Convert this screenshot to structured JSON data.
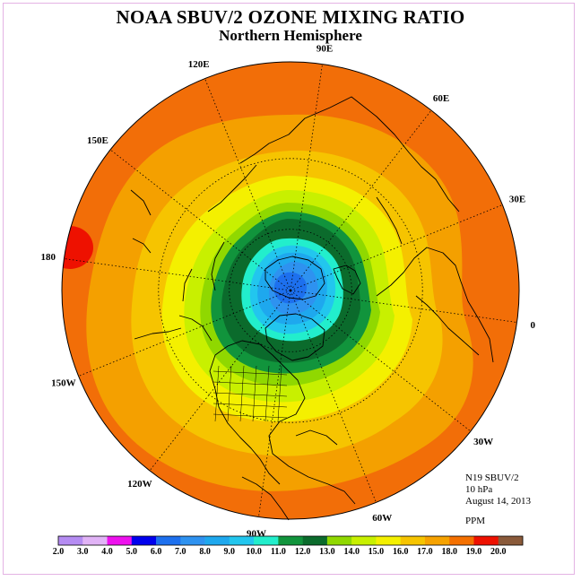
{
  "title": "NOAA SBUV/2 OZONE MIXING RATIO",
  "subtitle": "Northern Hemisphere",
  "longitude_labels": [
    {
      "text": "90E",
      "lon": 90
    },
    {
      "text": "60E",
      "lon": 60
    },
    {
      "text": "30E",
      "lon": 30
    },
    {
      "text": "0",
      "lon": 0
    },
    {
      "text": "30W",
      "lon": -30
    },
    {
      "text": "60W",
      "lon": -60
    },
    {
      "text": "90W",
      "lon": -90
    },
    {
      "text": "120W",
      "lon": -120
    },
    {
      "text": "150W",
      "lon": -150
    },
    {
      "text": "180",
      "lon": 180
    },
    {
      "text": "150E",
      "lon": 150
    },
    {
      "text": "120E",
      "lon": 120
    }
  ],
  "info": {
    "satellite": "N19 SBUV/2",
    "level": "10 hPa",
    "date": "August 14, 2013",
    "units": "PPM"
  },
  "colorbar": {
    "labels": [
      "2.0",
      "3.0",
      "4.0",
      "5.0",
      "6.0",
      "7.0",
      "8.0",
      "9.0",
      "10.0",
      "11.0",
      "12.0",
      "13.0",
      "14.0",
      "15.0",
      "16.0",
      "17.0",
      "18.0",
      "19.0",
      "20.0"
    ],
    "colors": [
      "#b58cf2",
      "#e1b3f6",
      "#ee11ee",
      "#0000ee",
      "#1d70ee",
      "#2e92f0",
      "#1ea8ee",
      "#22c6ee",
      "#22eecc",
      "#11943c",
      "#0b6b2c",
      "#90d800",
      "#c8f000",
      "#f4f000",
      "#f6c400",
      "#f6a200",
      "#f47000",
      "#ee1100",
      "#8a5a3a"
    ]
  },
  "ozone_levels_ppm": [
    18,
    17,
    16,
    15,
    14,
    13,
    12,
    11,
    10,
    9,
    8,
    7,
    6
  ],
  "fill_colors": {
    "background": "#f26e08",
    "blob_18": "#ee1100",
    "level_17": "#f4a000",
    "level_16": "#f6c400",
    "level_15": "#f4f000",
    "level_14": "#c8f000",
    "level_13": "#90d800",
    "level_11": "#11943c",
    "level_12": "#0b6b2c",
    "level_10": "#22eecc",
    "level_9": "#22c6ee",
    "level_8": "#1ea8ee",
    "level_7": "#2e92f0",
    "level_6": "#1d70ee"
  }
}
